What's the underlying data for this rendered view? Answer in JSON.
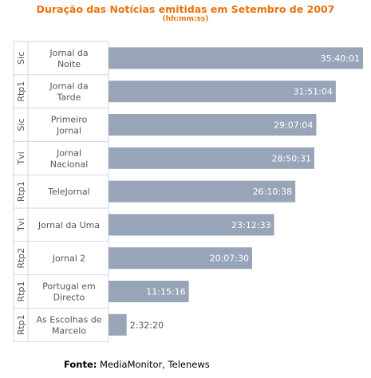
{
  "chart_data": {
    "type": "bar",
    "orientation": "horizontal",
    "title": "Duração das Notícias emitidas em Setembro de 2007",
    "subtitle": "(hh:mm:ss)",
    "categories": [
      {
        "channel": "Sic",
        "program": "Jornal da Noite"
      },
      {
        "channel": "Rtp1",
        "program": "Jornal da Tarde"
      },
      {
        "channel": "Sic",
        "program": "Primeiro Jornal"
      },
      {
        "channel": "Tvi",
        "program": "Jornal Nacional"
      },
      {
        "channel": "Rtp1",
        "program": "TeleJornal"
      },
      {
        "channel": "Tvi",
        "program": "Jornal da Uma"
      },
      {
        "channel": "Rtp2",
        "program": "Jornal 2"
      },
      {
        "channel": "Rtp1",
        "program": "Portugal em Directo"
      },
      {
        "channel": "Rtp1",
        "program": "As Escolhas de Marcelo"
      }
    ],
    "values": [
      "35:40:01",
      "31:51:04",
      "29:07:04",
      "28:50:31",
      "26:10:38",
      "23:12:33",
      "20:07:30",
      "11:15:16",
      "2:32:20"
    ],
    "bar_color": "#98a5b9",
    "grid": false,
    "legend": "none"
  },
  "source": {
    "label": "Fonte:",
    "text": "MediaMonitor, Telenews"
  }
}
